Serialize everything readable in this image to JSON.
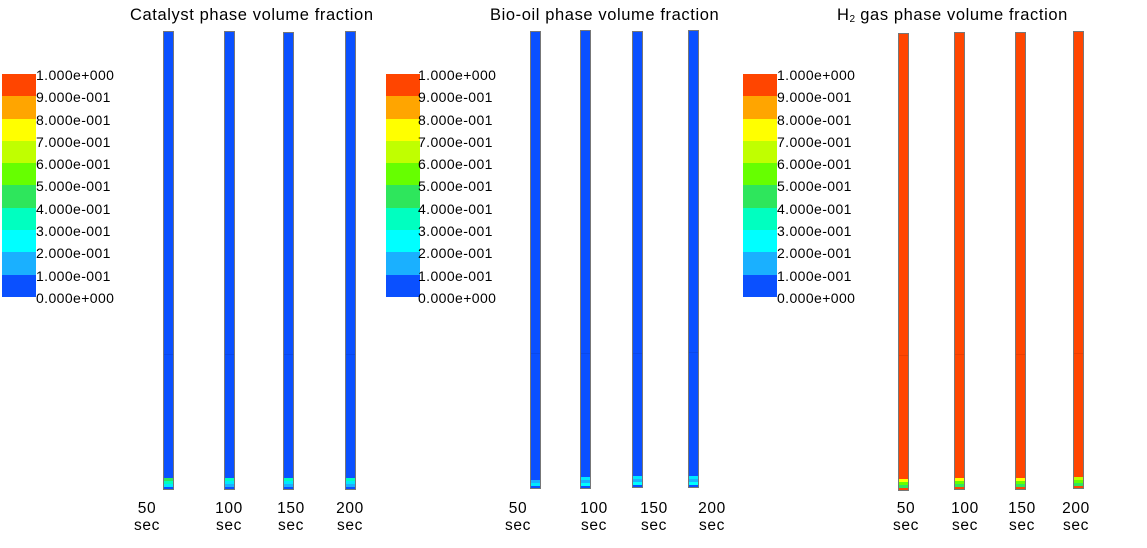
{
  "colormap": {
    "colors": [
      "#ff4500",
      "#ffa500",
      "#ffff00",
      "#c0ff00",
      "#66ff00",
      "#2ee65c",
      "#00ffc0",
      "#00ffff",
      "#1ab0ff",
      "#0a50ff"
    ],
    "labels": [
      "1.000e+000",
      "9.000e-001",
      "8.000e-001",
      "7.000e-001",
      "6.000e-001",
      "5.000e-001",
      "4.000e-001",
      "3.000e-001",
      "2.000e-001",
      "1.000e-001",
      "0.000e+000"
    ]
  },
  "panels": [
    {
      "title": "Catalyst phase volume fraction",
      "body_color": "#0a50ff",
      "tubes": [
        {
          "time": "50",
          "unit": "sec",
          "tip": [
            "#2ee65c",
            "#00ffc0",
            "#00e8ff"
          ]
        },
        {
          "time": "100",
          "unit": "sec",
          "tip": [
            "#00ffc0",
            "#00e8ff",
            "#1ab0ff"
          ]
        },
        {
          "time": "150",
          "unit": "sec",
          "tip": [
            "#00ffc0",
            "#00e8ff",
            "#1ab0ff"
          ]
        },
        {
          "time": "200",
          "unit": "sec",
          "tip": [
            "#00ffc0",
            "#00e8ff",
            "#1ab0ff"
          ]
        }
      ]
    },
    {
      "title": "Bio-oil phase volume fraction",
      "body_color": "#0a50ff",
      "tubes": [
        {
          "time": "50",
          "unit": "sec",
          "tip": [
            "#1ab0ff",
            "#00e8ff"
          ]
        },
        {
          "time": "100",
          "unit": "sec",
          "tip": [
            "#00e8ff",
            "#1ab0ff",
            "#00ffff"
          ]
        },
        {
          "time": "150",
          "unit": "sec",
          "tip": [
            "#00e8ff",
            "#1ab0ff",
            "#00ffff"
          ]
        },
        {
          "time": "200",
          "unit": "sec",
          "tip": [
            "#00e8ff",
            "#1ab0ff",
            "#00ffff"
          ]
        }
      ]
    },
    {
      "title_main": "H",
      "title_sub": "2",
      "title_rest": " gas phase volume fraction",
      "body_color": "#ff4500",
      "tubes": [
        {
          "time": "50",
          "unit": "sec",
          "tip": [
            "#ffff00",
            "#66ff00",
            "#2ee65c"
          ]
        },
        {
          "time": "100",
          "unit": "sec",
          "tip": [
            "#ffff00",
            "#66ff00",
            "#2ee65c"
          ]
        },
        {
          "time": "150",
          "unit": "sec",
          "tip": [
            "#ffff00",
            "#66ff00",
            "#2ee65c"
          ]
        },
        {
          "time": "200",
          "unit": "sec",
          "tip": [
            "#c0ff00",
            "#66ff00",
            "#2ee65c"
          ]
        }
      ]
    }
  ]
}
